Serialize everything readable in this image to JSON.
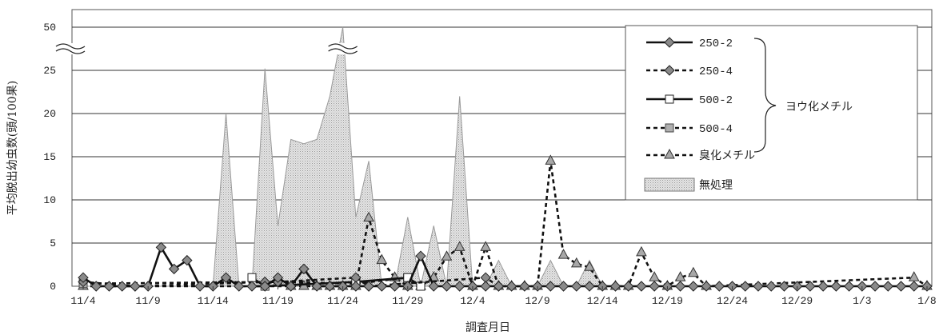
{
  "chart_data": {
    "type": "line",
    "title": "",
    "xlabel": "調査月日",
    "ylabel": "平均脱出幼虫数(頭/100果)",
    "y_ticks": [
      "0",
      "5",
      "10",
      "15",
      "20",
      "25",
      "50"
    ],
    "y_axis_break": true,
    "x_ticks": [
      "11/4",
      "11/9",
      "11/14",
      "11/19",
      "11/24",
      "11/29",
      "12/4",
      "12/9",
      "12/14",
      "12/19",
      "12/24",
      "12/29",
      "1/3",
      "1/8"
    ],
    "x_index_range": [
      0,
      65
    ],
    "grid": "horizontal",
    "legend_position": "top-right",
    "legend_group_label": "ヨウ化メチル",
    "series": [
      {
        "name": "250-2",
        "style": "solid",
        "marker": "diamond",
        "color": "#111111",
        "values": [
          [
            0,
            1
          ],
          [
            1,
            0
          ],
          [
            2,
            0
          ],
          [
            3,
            0
          ],
          [
            4,
            0
          ],
          [
            5,
            0
          ],
          [
            6,
            4.5
          ],
          [
            7,
            2
          ],
          [
            8,
            3
          ],
          [
            9,
            0
          ],
          [
            10,
            0
          ],
          [
            11,
            1
          ],
          [
            12,
            0
          ],
          [
            13,
            0
          ],
          [
            14,
            0
          ],
          [
            15,
            1
          ],
          [
            16,
            0
          ],
          [
            17,
            2
          ],
          [
            18,
            0
          ],
          [
            19,
            0
          ],
          [
            20,
            0
          ],
          [
            21,
            0
          ],
          [
            22,
            0
          ],
          [
            23,
            0
          ],
          [
            24,
            0
          ],
          [
            25,
            0
          ],
          [
            26,
            3.5
          ],
          [
            27,
            0
          ],
          [
            28,
            0
          ],
          [
            29,
            0
          ],
          [
            30,
            0
          ],
          [
            31,
            0
          ],
          [
            32,
            0
          ],
          [
            33,
            0
          ],
          [
            34,
            0
          ],
          [
            35,
            0
          ],
          [
            36,
            0
          ],
          [
            37,
            0
          ],
          [
            38,
            0
          ],
          [
            39,
            0
          ],
          [
            40,
            0
          ],
          [
            41,
            0
          ],
          [
            42,
            0
          ],
          [
            43,
            0
          ],
          [
            44,
            0
          ],
          [
            45,
            0
          ],
          [
            46,
            0
          ],
          [
            47,
            0
          ],
          [
            48,
            0
          ],
          [
            49,
            0
          ],
          [
            50,
            0
          ],
          [
            51,
            0
          ],
          [
            52,
            0
          ],
          [
            53,
            0
          ],
          [
            54,
            0
          ],
          [
            55,
            0
          ],
          [
            56,
            0
          ],
          [
            57,
            0
          ],
          [
            58,
            0
          ],
          [
            59,
            0
          ],
          [
            60,
            0
          ],
          [
            61,
            0
          ],
          [
            62,
            0
          ],
          [
            63,
            0
          ],
          [
            64,
            0
          ],
          [
            65,
            0
          ]
        ]
      },
      {
        "name": "250-4",
        "style": "dashed",
        "marker": "diamond",
        "color": "#111111",
        "values": [
          [
            0,
            0.5
          ],
          [
            4,
            0
          ],
          [
            14,
            0.5
          ],
          [
            15,
            0.5
          ],
          [
            21,
            1
          ],
          [
            22,
            0
          ],
          [
            31,
            1
          ],
          [
            32,
            0
          ]
        ]
      },
      {
        "name": "500-2",
        "style": "solid",
        "marker": "square-open",
        "color": "#111111",
        "values": [
          [
            13,
            1
          ],
          [
            14,
            0
          ],
          [
            21,
            0.5
          ],
          [
            25,
            1
          ],
          [
            26,
            0
          ]
        ]
      },
      {
        "name": "500-4",
        "style": "dashed",
        "marker": "square-gray",
        "color": "#111111",
        "values": [
          [
            0,
            0.3
          ],
          [
            15,
            0.5
          ],
          [
            21,
            0.3
          ],
          [
            25,
            1
          ],
          [
            26,
            0
          ]
        ]
      },
      {
        "name": "臭化メチル",
        "style": "dashed",
        "marker": "triangle",
        "color": "#111111",
        "values": [
          [
            0,
            0
          ],
          [
            16,
            0
          ],
          [
            17,
            0
          ],
          [
            18,
            0
          ],
          [
            19,
            0
          ],
          [
            20,
            0
          ],
          [
            21,
            0
          ],
          [
            22,
            7.9
          ],
          [
            23,
            3
          ],
          [
            24,
            1
          ],
          [
            25,
            0
          ],
          [
            26,
            0
          ],
          [
            27,
            1
          ],
          [
            28,
            3.4
          ],
          [
            29,
            4.5
          ],
          [
            30,
            0
          ],
          [
            31,
            4.5
          ],
          [
            32,
            0
          ],
          [
            33,
            0
          ],
          [
            34,
            0
          ],
          [
            35,
            0
          ],
          [
            36,
            14.5
          ],
          [
            37,
            3.6
          ],
          [
            38,
            2.6
          ],
          [
            39,
            2.2
          ],
          [
            40,
            0
          ],
          [
            41,
            0
          ],
          [
            42,
            0
          ],
          [
            43,
            3.9
          ],
          [
            44,
            1
          ],
          [
            45,
            0
          ],
          [
            46,
            1
          ],
          [
            47,
            1.5
          ],
          [
            48,
            0
          ],
          [
            64,
            1
          ],
          [
            65,
            0
          ]
        ]
      },
      {
        "name": "無処理",
        "style": "area",
        "color": "#d8d8d8",
        "values": [
          [
            0,
            0
          ],
          [
            1,
            0
          ],
          [
            2,
            0
          ],
          [
            3,
            0
          ],
          [
            4,
            0
          ],
          [
            5,
            0
          ],
          [
            6,
            0
          ],
          [
            7,
            0
          ],
          [
            8,
            0
          ],
          [
            9,
            0
          ],
          [
            10,
            0
          ],
          [
            11,
            20
          ],
          [
            12,
            0
          ],
          [
            13,
            0
          ],
          [
            14,
            26
          ],
          [
            15,
            7
          ],
          [
            16,
            17
          ],
          [
            17,
            16.5
          ],
          [
            18,
            17
          ],
          [
            19,
            22
          ],
          [
            20,
            50
          ],
          [
            21,
            8
          ],
          [
            22,
            14.5
          ],
          [
            23,
            0
          ],
          [
            24,
            0
          ],
          [
            25,
            8
          ],
          [
            26,
            0
          ],
          [
            27,
            7
          ],
          [
            28,
            0
          ],
          [
            29,
            22
          ],
          [
            30,
            0
          ],
          [
            31,
            0
          ],
          [
            32,
            3
          ],
          [
            33,
            0
          ],
          [
            34,
            0
          ],
          [
            35,
            0
          ],
          [
            36,
            3
          ],
          [
            37,
            0
          ],
          [
            38,
            0
          ],
          [
            39,
            3
          ],
          [
            40,
            0
          ],
          [
            41,
            0
          ],
          [
            42,
            0
          ],
          [
            43,
            0
          ],
          [
            44,
            0
          ],
          [
            45,
            0
          ],
          [
            46,
            0
          ],
          [
            47,
            0
          ],
          [
            48,
            0
          ],
          [
            49,
            0
          ],
          [
            50,
            0
          ],
          [
            51,
            0
          ],
          [
            52,
            0
          ],
          [
            53,
            0
          ],
          [
            54,
            0
          ],
          [
            55,
            0
          ],
          [
            56,
            0
          ],
          [
            57,
            0
          ],
          [
            58,
            0
          ],
          [
            59,
            0
          ],
          [
            60,
            0
          ],
          [
            61,
            0
          ],
          [
            62,
            0
          ],
          [
            63,
            0
          ],
          [
            64,
            0
          ],
          [
            65,
            0
          ]
        ]
      }
    ]
  }
}
